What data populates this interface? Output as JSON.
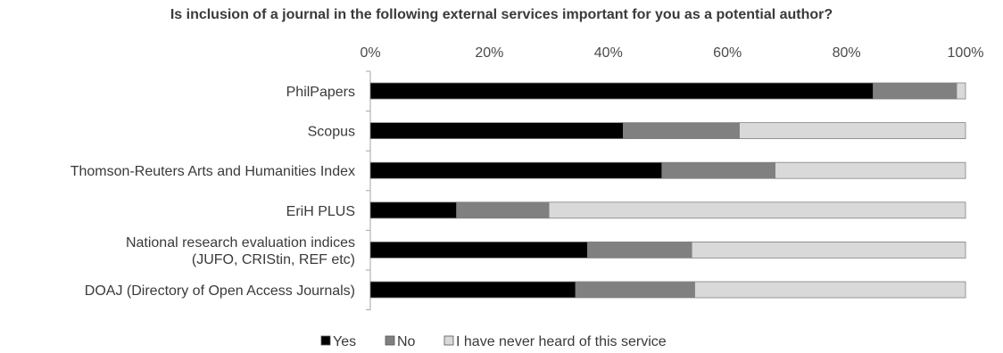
{
  "chart_data": {
    "type": "bar",
    "orientation": "horizontal",
    "stacked": "percent",
    "title": "Is inclusion of a journal in the following external services important for you as a potential author?",
    "xlabel": "",
    "ylabel": "",
    "xlim": [
      0,
      100
    ],
    "x_ticks": [
      "0%",
      "20%",
      "40%",
      "60%",
      "80%",
      "100%"
    ],
    "x_axis_position": "top",
    "grid": false,
    "legend_position": "bottom",
    "categories": [
      [
        "PhilPapers"
      ],
      [
        "Scopus"
      ],
      [
        "Thomson-Reuters Arts and Humanities Index"
      ],
      [
        "EriH PLUS"
      ],
      [
        "National research evaluation indices",
        "(JUFO, CRIStin, REF etc)"
      ],
      [
        "DOAJ (Directory of Open Access Journals)"
      ]
    ],
    "series": [
      {
        "name": "Yes",
        "color": "#000000",
        "values": [
          84.5,
          42.5,
          49,
          14.5,
          36.5,
          34.5
        ]
      },
      {
        "name": "No",
        "color": "#808080",
        "values": [
          14,
          19.5,
          19,
          15.5,
          17.5,
          20
        ]
      },
      {
        "name": "I have never heard of this service",
        "color": "#d9d9d9",
        "values": [
          1.5,
          38,
          32,
          70,
          46,
          45.5
        ]
      }
    ]
  }
}
